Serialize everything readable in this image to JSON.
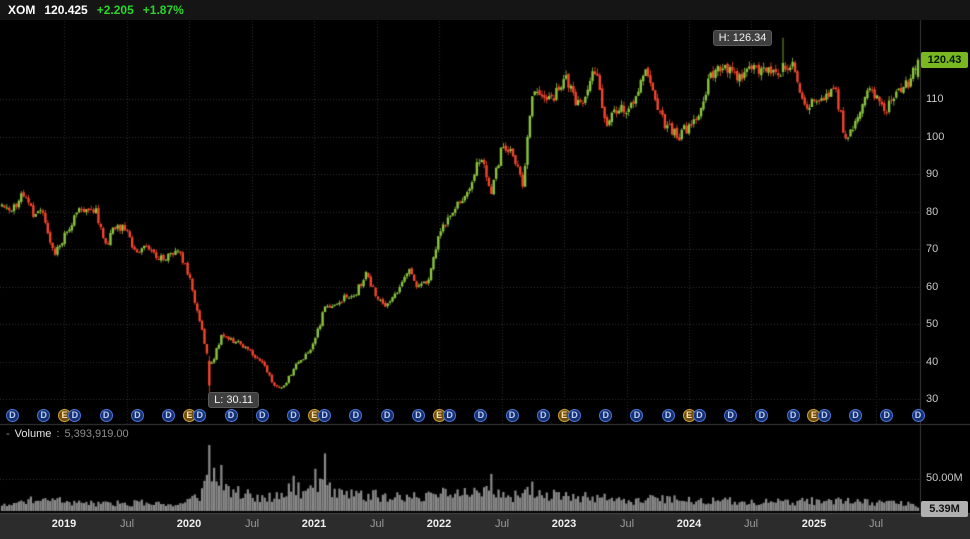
{
  "header": {
    "symbol": "XOM",
    "last": "120.425",
    "change": "+2.205",
    "change_pct": "+1.87%"
  },
  "annotations": {
    "high": "H: 126.34",
    "low": "L: 30.11"
  },
  "price_axis": {
    "last_badge": "120.43"
  },
  "volume_header": {
    "collapse": "-",
    "label": "Volume",
    "sep": ":",
    "value": "5,393,919.00"
  },
  "volume_axis": {
    "tick_label": "50.00M",
    "tick_value": 50,
    "badge": "5.39M",
    "badge_value": 5.39
  },
  "chart_data": {
    "type": "candlestick",
    "title": "XOM daily price with volume",
    "legend_position": "none",
    "grid": true,
    "x_axis": {
      "start": "2018-07",
      "end": "2025-11",
      "ticks": [
        {
          "month": "2019-01",
          "label": "2019",
          "major": true
        },
        {
          "month": "2019-07",
          "label": "Jul",
          "major": false
        },
        {
          "month": "2020-01",
          "label": "2020",
          "major": true
        },
        {
          "month": "2020-07",
          "label": "Jul",
          "major": false
        },
        {
          "month": "2021-01",
          "label": "2021",
          "major": true
        },
        {
          "month": "2021-07",
          "label": "Jul",
          "major": false
        },
        {
          "month": "2022-01",
          "label": "2022",
          "major": true
        },
        {
          "month": "2022-07",
          "label": "Jul",
          "major": false
        },
        {
          "month": "2023-01",
          "label": "2023",
          "major": true
        },
        {
          "month": "2023-07",
          "label": "Jul",
          "major": false
        },
        {
          "month": "2024-01",
          "label": "2024",
          "major": true
        },
        {
          "month": "2024-07",
          "label": "Jul",
          "major": false
        },
        {
          "month": "2025-01",
          "label": "2025",
          "major": true
        },
        {
          "month": "2025-07",
          "label": "Jul",
          "major": false
        }
      ]
    },
    "y_axis": {
      "ticks": [
        110,
        100,
        90,
        80,
        70,
        60,
        50,
        40,
        30
      ],
      "visible_range": [
        28,
        131
      ]
    },
    "high_marker": {
      "month": "2024-10",
      "value": 126.34
    },
    "low_marker": {
      "month": "2020-03",
      "value": 30.11
    },
    "last_close": 120.425,
    "monthly_anchors": [
      [
        "2018-07",
        81.6,
        11
      ],
      [
        "2018-08",
        80.2,
        10
      ],
      [
        "2018-09",
        85.0,
        11
      ],
      [
        "2018-10",
        79.7,
        16
      ],
      [
        "2018-11",
        79.5,
        14
      ],
      [
        "2018-12",
        68.2,
        17
      ],
      [
        "2019-01",
        73.3,
        13
      ],
      [
        "2019-02",
        79.0,
        11
      ],
      [
        "2019-03",
        80.8,
        11
      ],
      [
        "2019-04",
        80.3,
        10
      ],
      [
        "2019-05",
        70.9,
        12
      ],
      [
        "2019-06",
        76.6,
        11
      ],
      [
        "2019-07",
        74.4,
        9
      ],
      [
        "2019-08",
        68.5,
        12
      ],
      [
        "2019-09",
        70.6,
        11
      ],
      [
        "2019-10",
        67.6,
        10
      ],
      [
        "2019-11",
        68.1,
        9
      ],
      [
        "2019-12",
        69.8,
        11
      ],
      [
        "2020-01",
        62.1,
        14
      ],
      [
        "2020-02",
        51.4,
        24
      ],
      [
        "2020-03",
        38.0,
        58
      ],
      [
        "2020-04",
        46.5,
        38
      ],
      [
        "2020-05",
        45.5,
        26
      ],
      [
        "2020-06",
        44.7,
        27
      ],
      [
        "2020-07",
        42.1,
        19
      ],
      [
        "2020-08",
        39.9,
        17
      ],
      [
        "2020-09",
        34.3,
        21
      ],
      [
        "2020-10",
        32.6,
        26
      ],
      [
        "2020-11",
        38.1,
        34
      ],
      [
        "2020-12",
        41.2,
        25
      ],
      [
        "2021-01",
        44.8,
        30
      ],
      [
        "2021-02",
        54.4,
        38
      ],
      [
        "2021-03",
        55.8,
        30
      ],
      [
        "2021-04",
        57.2,
        22
      ],
      [
        "2021-05",
        58.4,
        22
      ],
      [
        "2021-06",
        63.1,
        21
      ],
      [
        "2021-07",
        57.6,
        22
      ],
      [
        "2021-08",
        54.5,
        19
      ],
      [
        "2021-09",
        58.8,
        22
      ],
      [
        "2021-10",
        64.5,
        20
      ],
      [
        "2021-11",
        59.8,
        22
      ],
      [
        "2021-12",
        61.2,
        20
      ],
      [
        "2022-01",
        75.0,
        26
      ],
      [
        "2022-02",
        78.4,
        26
      ],
      [
        "2022-03",
        82.6,
        30
      ],
      [
        "2022-04",
        85.3,
        24
      ],
      [
        "2022-05",
        96.0,
        28
      ],
      [
        "2022-06",
        85.6,
        32
      ],
      [
        "2022-07",
        96.7,
        24
      ],
      [
        "2022-08",
        95.6,
        20
      ],
      [
        "2022-09",
        87.3,
        24
      ],
      [
        "2022-10",
        110.8,
        26
      ],
      [
        "2022-11",
        111.3,
        20
      ],
      [
        "2022-12",
        110.3,
        22
      ],
      [
        "2023-01",
        116.0,
        20
      ],
      [
        "2023-02",
        110.0,
        18
      ],
      [
        "2023-03",
        109.7,
        20
      ],
      [
        "2023-04",
        118.3,
        16
      ],
      [
        "2023-05",
        102.2,
        18
      ],
      [
        "2023-06",
        107.2,
        16
      ],
      [
        "2023-07",
        107.0,
        14
      ],
      [
        "2023-08",
        111.2,
        14
      ],
      [
        "2023-09",
        117.6,
        16
      ],
      [
        "2023-10",
        105.9,
        18
      ],
      [
        "2023-11",
        102.7,
        16
      ],
      [
        "2023-12",
        100.0,
        16
      ],
      [
        "2024-01",
        102.8,
        16
      ],
      [
        "2024-02",
        104.4,
        14
      ],
      [
        "2024-03",
        116.2,
        16
      ],
      [
        "2024-04",
        118.3,
        16
      ],
      [
        "2024-05",
        117.0,
        14
      ],
      [
        "2024-06",
        115.1,
        14
      ],
      [
        "2024-07",
        118.8,
        12
      ],
      [
        "2024-08",
        118.0,
        12
      ],
      [
        "2024-09",
        117.2,
        13
      ],
      [
        "2024-10",
        116.8,
        14
      ],
      [
        "2024-11",
        120.5,
        13
      ],
      [
        "2024-12",
        107.6,
        14
      ],
      [
        "2025-01",
        109.8,
        14
      ],
      [
        "2025-02",
        111.3,
        13
      ],
      [
        "2025-03",
        113.5,
        14
      ],
      [
        "2025-04",
        99.5,
        18
      ],
      [
        "2025-05",
        103.0,
        14
      ],
      [
        "2025-06",
        113.0,
        14
      ],
      [
        "2025-07",
        110.8,
        12
      ],
      [
        "2025-08",
        107.0,
        12
      ],
      [
        "2025-09",
        111.5,
        12
      ],
      [
        "2025-10",
        114.0,
        12
      ],
      [
        "2025-11",
        120.43,
        8
      ]
    ],
    "volume_spikes": {
      "2020-03": 103,
      "2020-04": 72,
      "2020-11": 55,
      "2021-01": 66,
      "2021-02": 90,
      "2022-06": 58,
      "2022-10": 46
    },
    "events": [
      [
        "2018-08",
        "D"
      ],
      [
        "2018-11",
        "D"
      ],
      [
        "2019-01",
        "E"
      ],
      [
        "2019-02",
        "D"
      ],
      [
        "2019-05",
        "D"
      ],
      [
        "2019-08",
        "D"
      ],
      [
        "2019-11",
        "D"
      ],
      [
        "2020-01",
        "E"
      ],
      [
        "2020-02",
        "D"
      ],
      [
        "2020-05",
        "D"
      ],
      [
        "2020-08",
        "D"
      ],
      [
        "2020-11",
        "D"
      ],
      [
        "2021-01",
        "E"
      ],
      [
        "2021-02",
        "D"
      ],
      [
        "2021-05",
        "D"
      ],
      [
        "2021-08",
        "D"
      ],
      [
        "2021-11",
        "D"
      ],
      [
        "2022-01",
        "E"
      ],
      [
        "2022-02",
        "D"
      ],
      [
        "2022-05",
        "D"
      ],
      [
        "2022-08",
        "D"
      ],
      [
        "2022-11",
        "D"
      ],
      [
        "2023-01",
        "E"
      ],
      [
        "2023-02",
        "D"
      ],
      [
        "2023-05",
        "D"
      ],
      [
        "2023-08",
        "D"
      ],
      [
        "2023-11",
        "D"
      ],
      [
        "2024-01",
        "E"
      ],
      [
        "2024-02",
        "D"
      ],
      [
        "2024-05",
        "D"
      ],
      [
        "2024-08",
        "D"
      ],
      [
        "2024-11",
        "D"
      ],
      [
        "2025-01",
        "E"
      ],
      [
        "2025-02",
        "D"
      ],
      [
        "2025-05",
        "D"
      ],
      [
        "2025-08",
        "D"
      ],
      [
        "2025-11",
        "D"
      ]
    ],
    "colors": {
      "up": "#8bc53f",
      "down": "#f4452c",
      "volume": "#8a8a8a",
      "grid": "#2e2e2e",
      "last_badge_bg": "#79b821",
      "change_green": "#2bd42b",
      "dividend_blue": "#4a76d8",
      "earnings_orange": "#cfa13a"
    }
  }
}
